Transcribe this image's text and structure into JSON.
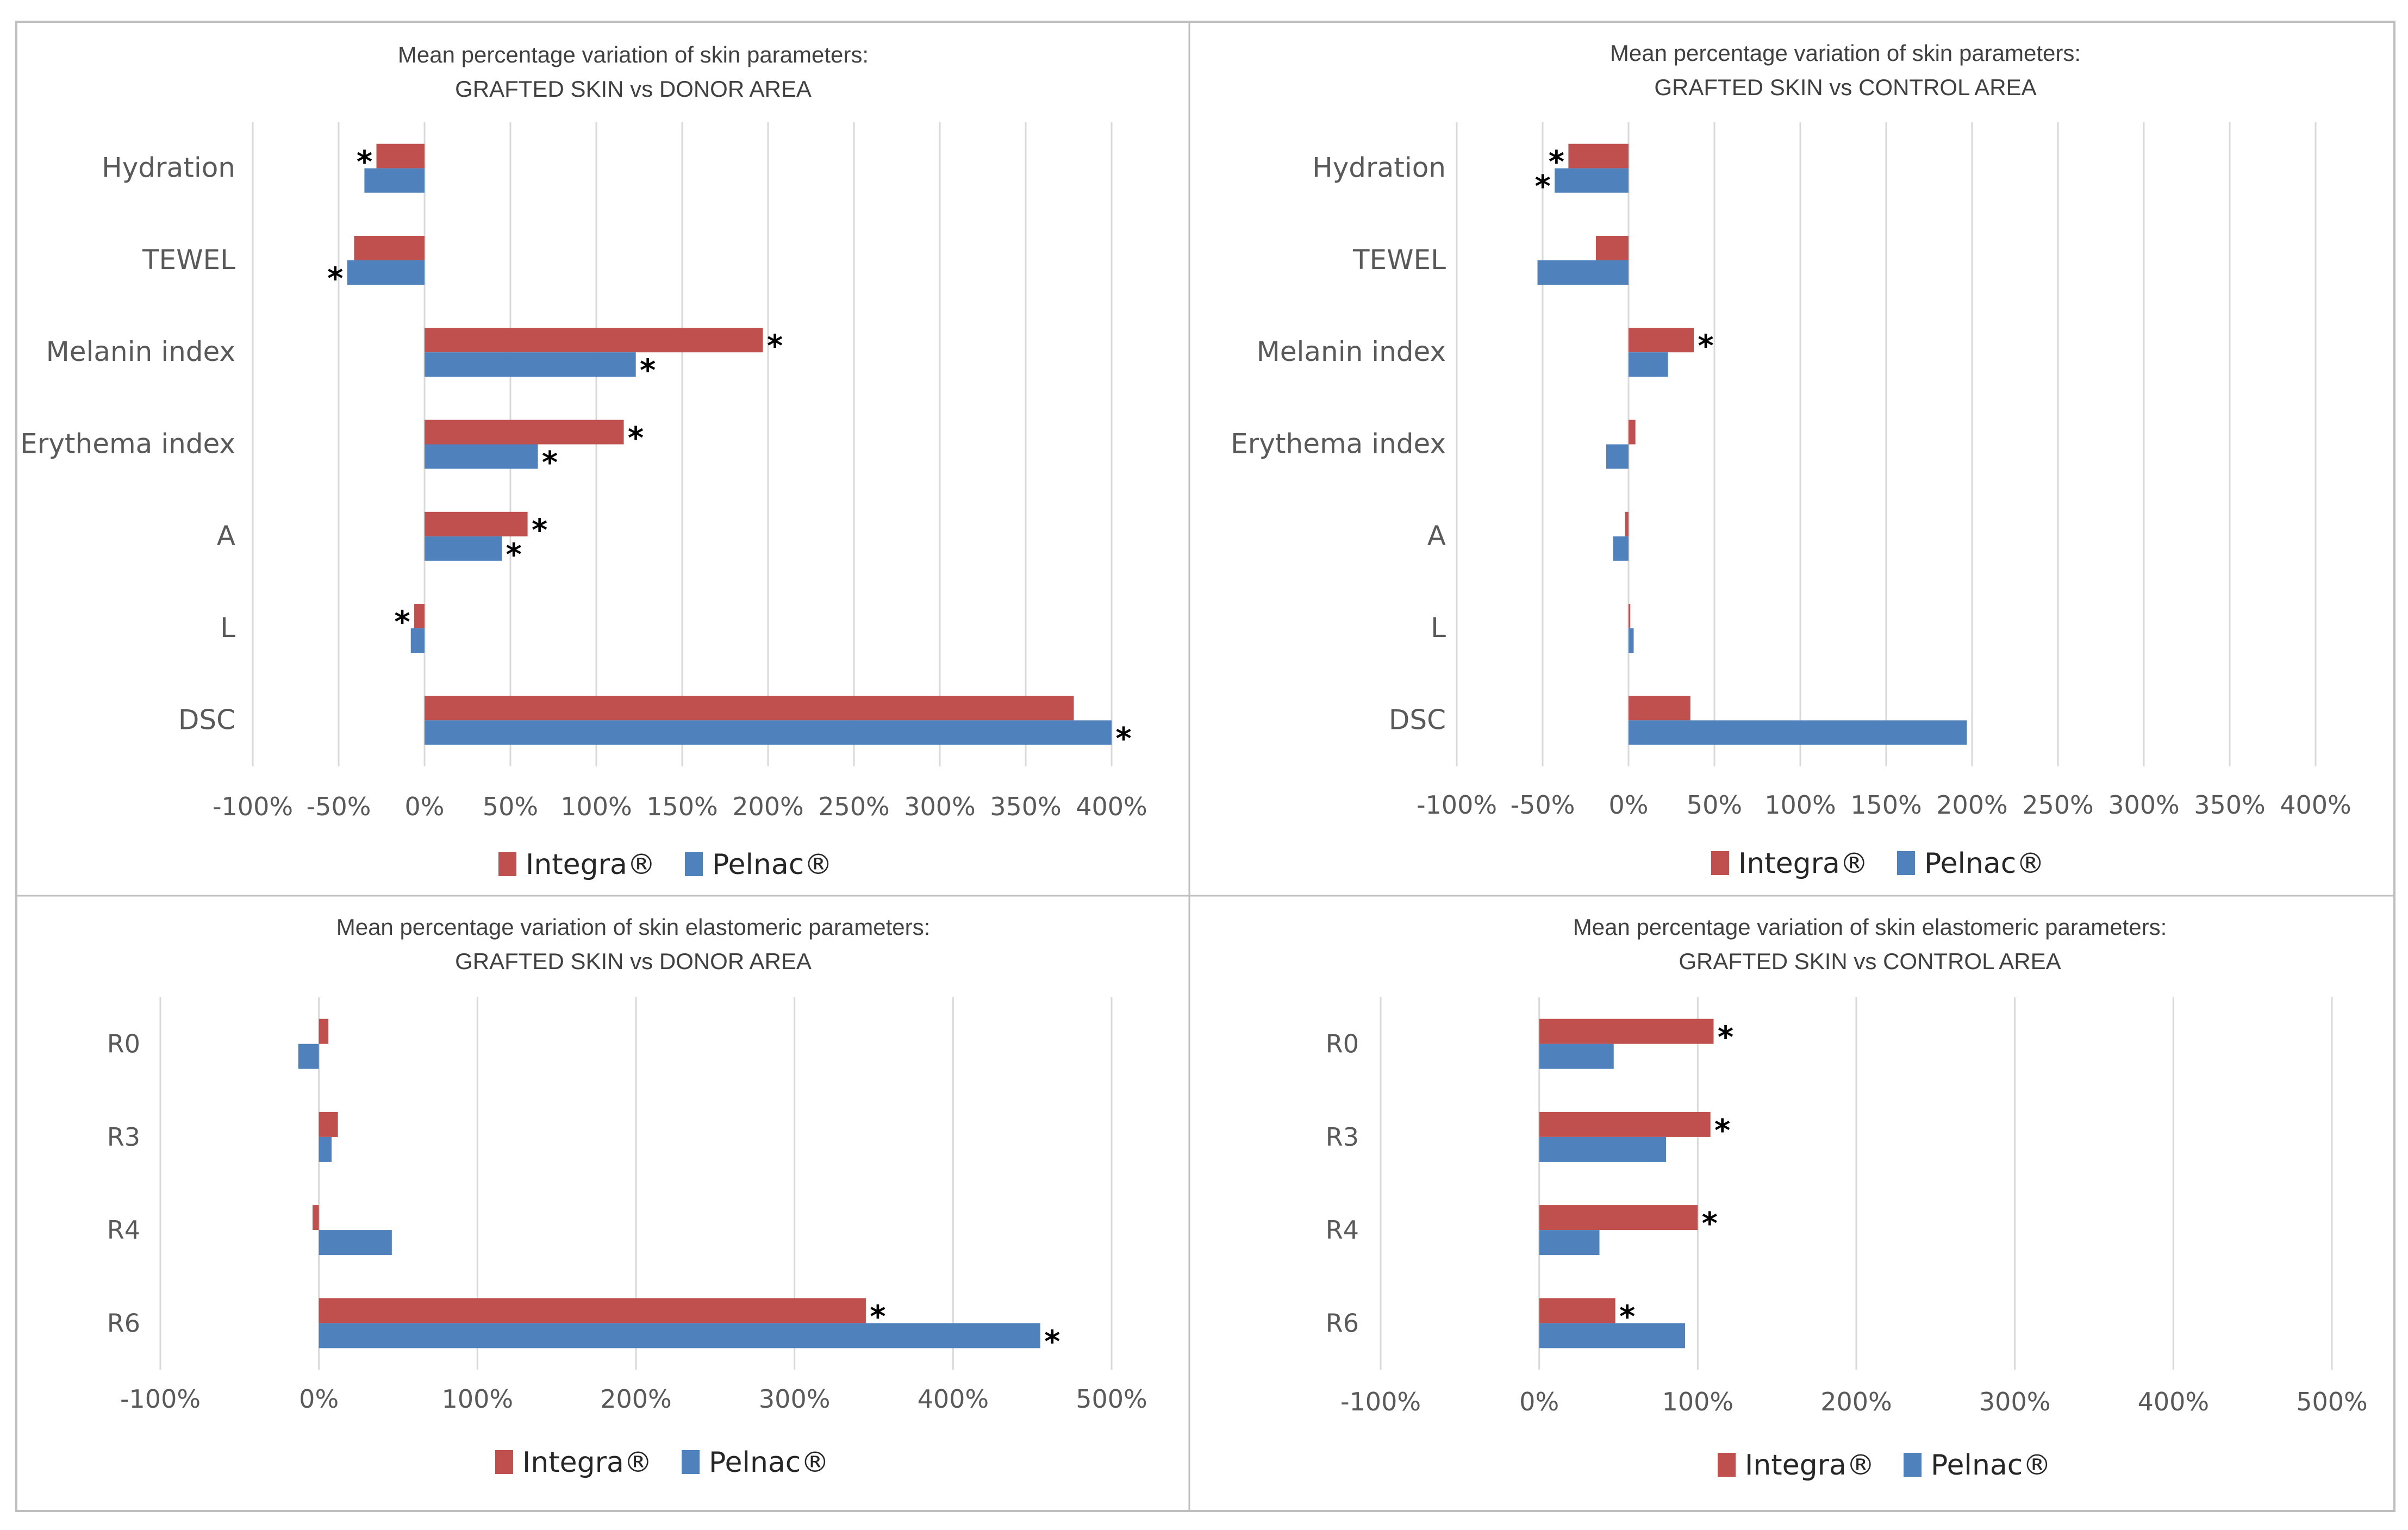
{
  "figure": {
    "colors": {
      "integra": "#c0504d",
      "pelnac": "#4f81bd",
      "grid": "#d9d9d9",
      "border": "#bfbfbf"
    }
  },
  "legend": {
    "integra": "Integra®",
    "pelnac": "Pelnac®"
  },
  "significance_mark": "*",
  "chart_data": [
    {
      "type": "bar",
      "orientation": "horizontal",
      "title": [
        "Mean percentage variation of skin parameters:",
        "GRAFTED SKIN vs DONOR AREA"
      ],
      "categories": [
        "Hydration",
        "TEWEL",
        "Melanin index",
        "Erythema index",
        "A",
        "L",
        "DSC"
      ],
      "xlim": [
        -100,
        400
      ],
      "xticks": [
        -100,
        -50,
        0,
        50,
        100,
        150,
        200,
        250,
        300,
        350,
        400
      ],
      "tick_labels": [
        "-100%",
        "-50%",
        "0%",
        "50%",
        "100%",
        "150%",
        "200%",
        "250%",
        "300%",
        "350%",
        "400%"
      ],
      "series": [
        {
          "name": "Integra®",
          "values": [
            -28,
            -41,
            197,
            116,
            60,
            -6,
            378
          ],
          "significant": [
            true,
            false,
            true,
            true,
            true,
            true,
            false
          ]
        },
        {
          "name": "Pelnac®",
          "values": [
            -35,
            -45,
            123,
            66,
            45,
            -8,
            400
          ],
          "significant": [
            false,
            true,
            true,
            true,
            true,
            false,
            true
          ]
        }
      ]
    },
    {
      "type": "bar",
      "orientation": "horizontal",
      "title": [
        "Mean percentage variation of skin parameters:",
        "GRAFTED SKIN vs CONTROL AREA"
      ],
      "categories": [
        "Hydration",
        "TEWEL",
        "Melanin index",
        "Erythema index",
        "A",
        "L",
        "DSC"
      ],
      "xlim": [
        -100,
        400
      ],
      "xticks": [
        -100,
        -50,
        0,
        50,
        100,
        150,
        200,
        250,
        300,
        350,
        400
      ],
      "tick_labels": [
        "-100%",
        "-50%",
        "0%",
        "50%",
        "100%",
        "150%",
        "200%",
        "250%",
        "300%",
        "350%",
        "400%"
      ],
      "series": [
        {
          "name": "Integra®",
          "values": [
            -35,
            -19,
            38,
            4,
            -2,
            1,
            36
          ],
          "significant": [
            true,
            false,
            true,
            false,
            false,
            false,
            false
          ]
        },
        {
          "name": "Pelnac®",
          "values": [
            -43,
            -53,
            23,
            -13,
            -9,
            3,
            197
          ],
          "significant": [
            true,
            false,
            false,
            false,
            false,
            false,
            false
          ]
        }
      ]
    },
    {
      "type": "bar",
      "orientation": "horizontal",
      "title": [
        "Mean percentage variation of skin elastomeric parameters:",
        "GRAFTED SKIN vs DONOR AREA"
      ],
      "categories": [
        "R0",
        "R3",
        "R4",
        "R6"
      ],
      "xlim": [
        -100,
        500
      ],
      "xticks": [
        -100,
        0,
        100,
        200,
        300,
        400,
        500
      ],
      "tick_labels": [
        "-100%",
        "0%",
        "100%",
        "200%",
        "300%",
        "400%",
        "500%"
      ],
      "series": [
        {
          "name": "Integra®",
          "values": [
            6,
            12,
            -4,
            345
          ],
          "significant": [
            false,
            false,
            false,
            true
          ]
        },
        {
          "name": "Pelnac®",
          "values": [
            -13,
            8,
            46,
            455
          ],
          "significant": [
            false,
            false,
            false,
            true
          ]
        }
      ]
    },
    {
      "type": "bar",
      "orientation": "horizontal",
      "title": [
        "Mean percentage variation of skin elastomeric parameters:",
        "GRAFTED SKIN vs CONTROL AREA"
      ],
      "categories": [
        "R0",
        "R3",
        "R4",
        "R6"
      ],
      "xlim": [
        -100,
        500
      ],
      "xticks": [
        -100,
        0,
        100,
        200,
        300,
        400,
        500
      ],
      "tick_labels": [
        "-100%",
        "0%",
        "100%",
        "200%",
        "300%",
        "400%",
        "500%"
      ],
      "series": [
        {
          "name": "Integra®",
          "values": [
            110,
            108,
            100,
            48
          ],
          "significant": [
            true,
            true,
            true,
            true
          ]
        },
        {
          "name": "Pelnac®",
          "values": [
            47,
            80,
            38,
            92
          ],
          "significant": [
            false,
            false,
            false,
            false
          ]
        }
      ]
    }
  ]
}
